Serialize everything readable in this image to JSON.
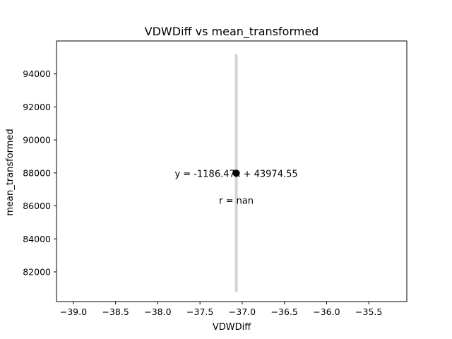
{
  "chart_data": {
    "type": "scatter",
    "title": "VDWDiff vs mean_transformed",
    "xlabel": "VDWDiff",
    "ylabel": "mean_transformed",
    "xlim": [
      -39.2,
      -35.05
    ],
    "ylim": [
      80200,
      96000
    ],
    "x_ticks": [
      -39.0,
      -38.5,
      -38.0,
      -37.5,
      -37.0,
      -36.5,
      -36.0,
      -35.5
    ],
    "x_tick_labels": [
      "−39.0",
      "−38.5",
      "−38.0",
      "−37.5",
      "−37.0",
      "−36.5",
      "−36.0",
      "−35.5"
    ],
    "y_ticks": [
      82000,
      84000,
      86000,
      88000,
      90000,
      92000,
      94000
    ],
    "y_tick_labels": [
      "82000",
      "84000",
      "86000",
      "88000",
      "90000",
      "92000",
      "94000"
    ],
    "points": [
      {
        "x": -37.07,
        "y": 87980
      }
    ],
    "fit_line": {
      "x": -37.07,
      "y_start": 80800,
      "y_end": 95200,
      "color": "#d3d3d3"
    },
    "point_color": "#000000",
    "grid": false,
    "annotations": [
      {
        "text": "y = -1186.47x + 43974.55",
        "x": -37.07,
        "y": 87980
      },
      {
        "text": "r = nan",
        "x": -37.07,
        "y": 86350
      }
    ]
  }
}
